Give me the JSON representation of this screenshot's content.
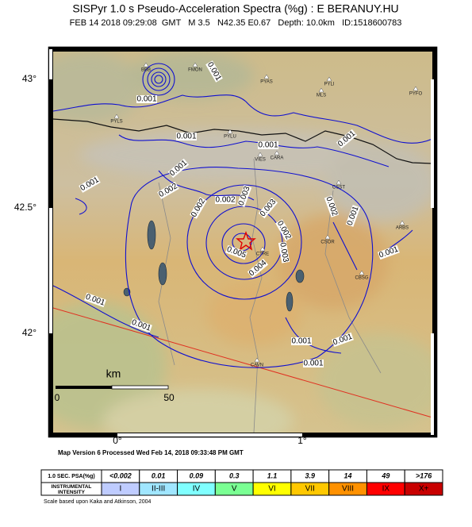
{
  "header": {
    "title": "SISPyr 1.0 s Pseudo-Acceleration Spectra (%g) : E BERANUY.HU",
    "subtitle": "FEB 14 2018 09:29:08  GMT   M 3.5   N42.35 E0.67   Depth: 10.0km   ID:1518600783"
  },
  "map": {
    "lat_labels": [
      "43°",
      "42.5°",
      "42°"
    ],
    "lon_labels": [
      "0°",
      "1°"
    ],
    "scale_bar": {
      "unit": "km",
      "labels": [
        "0",
        "50"
      ]
    },
    "contour_labels": [
      "0.001",
      "0.001",
      "0.001",
      "0.001",
      "0.001",
      "0.001",
      "0.002",
      "0.001",
      "0.002",
      "0.002",
      "0.003",
      "0.003",
      "0.002",
      "0.002",
      "0.001",
      "0.003",
      "0.001",
      "0.005",
      "0.004",
      "0.001",
      "0.001",
      "0.001",
      "0.001",
      "0.001"
    ],
    "stations": [
      "BBB",
      "FMON",
      "PYAS",
      "PYLI",
      "MLS",
      "PYFO",
      "PYLS",
      "PYLU",
      "VIES",
      "CARA",
      "CSST",
      "ARBS",
      "CSOR",
      "CTRE",
      "CBSG",
      "CAVN"
    ]
  },
  "footer": {
    "processed": "Map Version 6 Processed Wed Feb 14, 2018 09:33:48 PM GMT"
  },
  "legend": {
    "row_headers": [
      "1.0 SEC. PSA(%g)",
      "INSTRUMENTAL INTENSITY"
    ],
    "psa": [
      "<0.002",
      "0.01",
      "0.09",
      "0.3",
      "1.1",
      "3.9",
      "14",
      "49",
      ">176"
    ],
    "intensity": [
      "I",
      "II-III",
      "IV",
      "V",
      "VI",
      "VII",
      "VIII",
      "IX",
      "X+"
    ]
  },
  "note": "Scale based upon Kaka and Atkinson, 2004"
}
